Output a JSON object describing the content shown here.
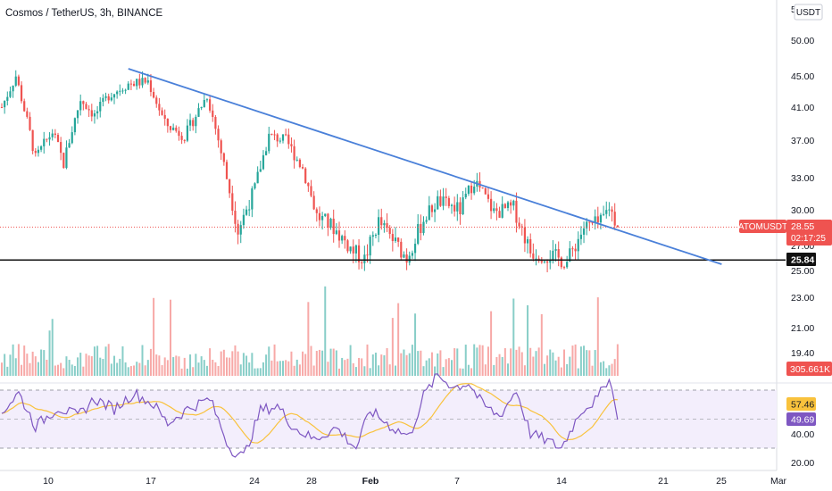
{
  "header": {
    "title": "Cosmos / TetherUS, 3h, BINANCE",
    "currency_badge": "USDT"
  },
  "chart_data": {
    "type": "candlestick",
    "symbol_label": "ATOMUSDT",
    "last_price": "28.55",
    "countdown": "02:17:25",
    "volume_label": "305.661K",
    "support_label": "25.84",
    "support_value": 25.84,
    "price_ticks": [
      "5",
      "50.00",
      "45.00",
      "41.00",
      "37.00",
      "33.00",
      "30.00",
      "27.00",
      "25.00",
      "23.00",
      "21.00",
      "19.40"
    ],
    "rsi_ticks": [
      "40.00",
      "20.00"
    ],
    "rsi_labels": [
      "57.46",
      "49.69"
    ],
    "x_ticks": [
      "10",
      "17",
      "24",
      "28",
      "Feb",
      "7",
      "14",
      "21",
      "25",
      "Mar"
    ],
    "trendline": {
      "start": {
        "bar": 45,
        "price": 46.0
      },
      "end": {
        "bar": 256,
        "price": 25.5
      }
    },
    "price_keypoints": [
      [
        0,
        41.0
      ],
      [
        5,
        45.0
      ],
      [
        12,
        35.0
      ],
      [
        18,
        38.0
      ],
      [
        22,
        34.5
      ],
      [
        28,
        42.0
      ],
      [
        33,
        40.0
      ],
      [
        38,
        42.5
      ],
      [
        45,
        44.0
      ],
      [
        52,
        44.3
      ],
      [
        58,
        39.0
      ],
      [
        65,
        37.5
      ],
      [
        73,
        42.5
      ],
      [
        80,
        33.0
      ],
      [
        84,
        28.2
      ],
      [
        90,
        32.0
      ],
      [
        95,
        37.5
      ],
      [
        101,
        37.0
      ],
      [
        107,
        34.0
      ],
      [
        112,
        29.5
      ],
      [
        118,
        28.5
      ],
      [
        125,
        26.5
      ],
      [
        129,
        25.9
      ],
      [
        134,
        29.0
      ],
      [
        140,
        27.2
      ],
      [
        144,
        26.0
      ],
      [
        150,
        29.2
      ],
      [
        155,
        30.8
      ],
      [
        163,
        30.0
      ],
      [
        168,
        32.8
      ],
      [
        175,
        29.8
      ],
      [
        182,
        30.2
      ],
      [
        188,
        26.5
      ],
      [
        195,
        26.2
      ],
      [
        201,
        25.7
      ],
      [
        207,
        28.5
      ],
      [
        213,
        28.9
      ],
      [
        216,
        30.3
      ],
      [
        219,
        28.6
      ]
    ],
    "rsi_keypoints": [
      [
        0,
        55
      ],
      [
        6,
        68
      ],
      [
        12,
        45
      ],
      [
        20,
        58
      ],
      [
        27,
        52
      ],
      [
        33,
        64
      ],
      [
        40,
        57
      ],
      [
        47,
        68
      ],
      [
        54,
        60
      ],
      [
        59,
        47
      ],
      [
        66,
        57
      ],
      [
        74,
        64
      ],
      [
        81,
        30
      ],
      [
        86,
        24
      ],
      [
        92,
        56
      ],
      [
        98,
        59
      ],
      [
        104,
        44
      ],
      [
        111,
        36
      ],
      [
        119,
        44
      ],
      [
        126,
        30
      ],
      [
        131,
        56
      ],
      [
        139,
        44
      ],
      [
        145,
        38
      ],
      [
        150,
        66
      ],
      [
        155,
        80
      ],
      [
        161,
        72
      ],
      [
        166,
        75
      ],
      [
        171,
        60
      ],
      [
        177,
        52
      ],
      [
        183,
        70
      ],
      [
        188,
        40
      ],
      [
        193,
        36
      ],
      [
        199,
        30
      ],
      [
        206,
        56
      ],
      [
        212,
        64
      ],
      [
        216,
        80
      ],
      [
        219,
        49.69
      ]
    ],
    "colors": {
      "up": "#26a69a",
      "down": "#ef5350",
      "trendline": "#4a80d9",
      "rsi_line": "#7e57c2",
      "rsi_ma": "#f9c23c",
      "rsi_band": "#f3eefc"
    }
  }
}
